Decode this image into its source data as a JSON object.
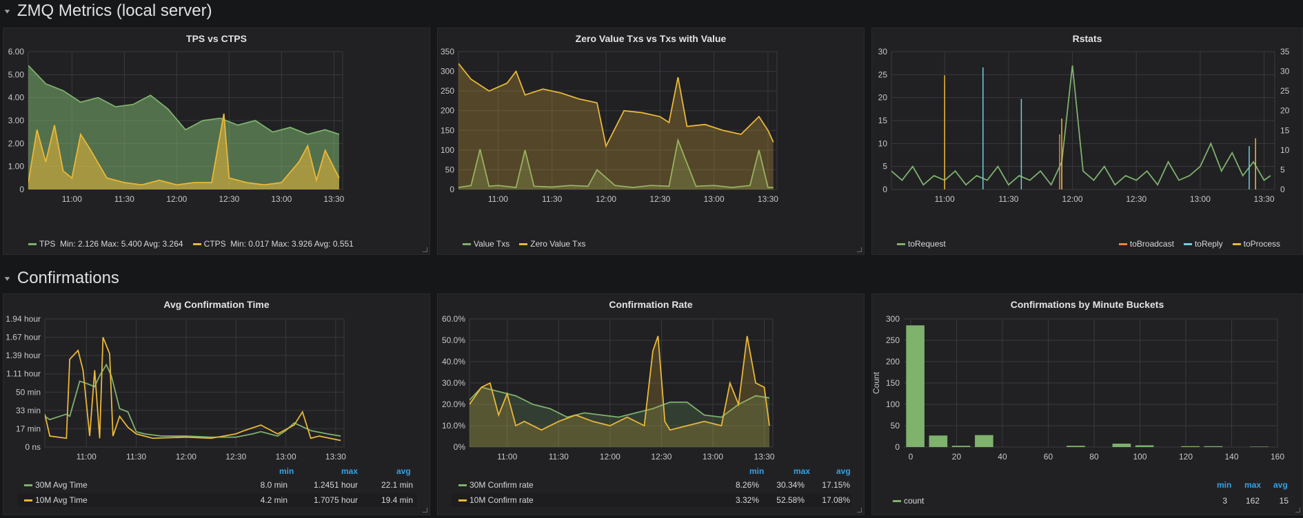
{
  "rows": [
    {
      "title": "ZMQ Metrics (local server)"
    },
    {
      "title": "Confirmations"
    }
  ],
  "colors": {
    "green": "#7eb26d",
    "yellow": "#eab839",
    "orange": "#ef843c",
    "blue": "#6ed0e0",
    "accent": "#33a2e5"
  },
  "chart_data": [
    {
      "type": "area",
      "title": "TPS vs CTPS",
      "x_ticks": [
        "11:00",
        "11:30",
        "12:00",
        "12:30",
        "13:00",
        "13:30"
      ],
      "y_ticks": [
        "0",
        "1.00",
        "2.00",
        "3.00",
        "4.00",
        "5.00",
        "6.00"
      ],
      "ylim": [
        0,
        6
      ],
      "x_range": [
        "10:35",
        "13:35"
      ],
      "series": [
        {
          "name": "TPS",
          "color": "#7eb26d",
          "stats": "Min: 2.126   Max: 5.400   Avg: 3.264",
          "x": [
            "10:35",
            "10:45",
            "10:55",
            "11:05",
            "11:15",
            "11:25",
            "11:35",
            "11:45",
            "11:55",
            "12:05",
            "12:15",
            "12:25",
            "12:35",
            "12:45",
            "12:55",
            "13:05",
            "13:15",
            "13:25",
            "13:33"
          ],
          "values": [
            5.4,
            4.6,
            4.3,
            3.8,
            4.0,
            3.6,
            3.7,
            4.1,
            3.5,
            2.6,
            3.0,
            3.1,
            2.8,
            3.0,
            2.5,
            2.7,
            2.4,
            2.6,
            2.4
          ]
        },
        {
          "name": "CTPS",
          "color": "#eab839",
          "stats": "Min: 0.017   Max: 3.926   Avg: 0.551",
          "x": [
            "10:35",
            "10:40",
            "10:45",
            "10:50",
            "10:55",
            "11:00",
            "11:05",
            "11:10",
            "11:20",
            "11:30",
            "11:40",
            "11:50",
            "12:00",
            "12:10",
            "12:20",
            "12:27",
            "12:30",
            "12:40",
            "12:50",
            "13:00",
            "13:10",
            "13:15",
            "13:20",
            "13:25",
            "13:33"
          ],
          "values": [
            0.3,
            2.6,
            1.2,
            2.8,
            0.8,
            0.5,
            2.4,
            1.8,
            0.5,
            0.3,
            0.2,
            0.4,
            0.2,
            0.3,
            0.3,
            3.3,
            0.5,
            0.3,
            0.2,
            0.3,
            1.2,
            1.9,
            0.4,
            1.7,
            0.5
          ]
        }
      ]
    },
    {
      "type": "area",
      "title": "Zero Value Txs vs Txs with Value",
      "x_ticks": [
        "11:00",
        "11:30",
        "12:00",
        "12:30",
        "13:00",
        "13:30"
      ],
      "y_ticks": [
        "0",
        "50",
        "100",
        "150",
        "200",
        "250",
        "300",
        "350"
      ],
      "ylim": [
        0,
        350
      ],
      "x_range": [
        "10:38",
        "13:35"
      ],
      "series": [
        {
          "name": "Value Txs",
          "color": "#7eb26d",
          "x": [
            "10:38",
            "10:45",
            "10:50",
            "10:55",
            "11:00",
            "11:10",
            "11:15",
            "11:20",
            "11:30",
            "11:40",
            "11:50",
            "11:55",
            "12:05",
            "12:15",
            "12:25",
            "12:35",
            "12:40",
            "12:50",
            "13:00",
            "13:10",
            "13:20",
            "13:25",
            "13:30",
            "13:33"
          ],
          "values": [
            5,
            10,
            102,
            8,
            10,
            5,
            100,
            8,
            6,
            10,
            8,
            50,
            10,
            5,
            10,
            8,
            125,
            8,
            10,
            5,
            10,
            100,
            5,
            5
          ]
        },
        {
          "name": "Zero Value Txs",
          "color": "#eab839",
          "x": [
            "10:38",
            "10:45",
            "10:55",
            "11:05",
            "11:10",
            "11:15",
            "11:25",
            "11:35",
            "11:45",
            "11:55",
            "12:00",
            "12:10",
            "12:20",
            "12:30",
            "12:35",
            "12:40",
            "12:45",
            "12:55",
            "13:05",
            "13:15",
            "13:25",
            "13:30",
            "13:33"
          ],
          "values": [
            320,
            280,
            250,
            270,
            300,
            240,
            255,
            245,
            230,
            220,
            110,
            200,
            195,
            185,
            170,
            285,
            160,
            165,
            150,
            140,
            185,
            150,
            120
          ]
        }
      ]
    },
    {
      "type": "line",
      "title": "Rstats",
      "x_ticks": [
        "11:00",
        "11:30",
        "12:00",
        "12:30",
        "13:00",
        "13:30"
      ],
      "y_ticks": [
        "0",
        "5",
        "10",
        "15",
        "20",
        "25",
        "30"
      ],
      "y2_ticks": [
        "0",
        "5",
        "10",
        "15",
        "20",
        "25",
        "30",
        "35"
      ],
      "ylim": [
        0,
        30
      ],
      "y2lim": [
        0,
        35
      ],
      "x_range": [
        "10:35",
        "13:35"
      ],
      "series": [
        {
          "name": "toRequest",
          "color": "#7eb26d",
          "axis": "left",
          "x": [
            "10:35",
            "10:40",
            "10:45",
            "10:50",
            "10:55",
            "11:00",
            "11:05",
            "11:10",
            "11:15",
            "11:20",
            "11:25",
            "11:30",
            "11:35",
            "11:40",
            "11:45",
            "11:50",
            "11:55",
            "12:00",
            "12:05",
            "12:10",
            "12:15",
            "12:20",
            "12:25",
            "12:30",
            "12:35",
            "12:40",
            "12:45",
            "12:50",
            "12:55",
            "13:00",
            "13:05",
            "13:10",
            "13:15",
            "13:20",
            "13:25",
            "13:30",
            "13:33"
          ],
          "values": [
            4,
            2,
            5,
            1,
            3,
            2,
            4,
            1,
            3,
            2,
            5,
            1,
            3,
            2,
            4,
            1,
            6,
            27,
            4,
            2,
            5,
            1,
            3,
            2,
            4,
            1,
            6,
            2,
            3,
            5,
            10,
            4,
            8,
            3,
            6,
            2,
            3
          ]
        },
        {
          "name": "toBroadcast",
          "color": "#ef843c",
          "axis": "right",
          "x": [
            "11:00",
            "11:54",
            "13:26"
          ],
          "values": [
            26,
            14,
            10
          ]
        },
        {
          "name": "toReply",
          "color": "#6ed0e0",
          "axis": "right",
          "x": [
            "11:00",
            "11:18",
            "11:36",
            "11:55",
            "13:23"
          ],
          "values": [
            27,
            31,
            23,
            8,
            11
          ]
        },
        {
          "name": "toProcess",
          "color": "#eab839",
          "axis": "right",
          "x": [
            "11:00",
            "11:55",
            "13:26"
          ],
          "values": [
            29,
            18,
            13
          ]
        }
      ]
    },
    {
      "type": "line",
      "title": "Avg Confirmation Time",
      "x_ticks": [
        "11:00",
        "11:30",
        "12:00",
        "12:30",
        "13:00",
        "13:30"
      ],
      "y_ticks": [
        "0 ns",
        "17 min",
        "33 min",
        "50 min",
        "1.11 hour",
        "1.39 hour",
        "1.67 hour",
        "1.94 hour"
      ],
      "ylim_min": [
        0,
        116.7
      ],
      "x_range": [
        "10:35",
        "13:35"
      ],
      "legend_headers": [
        "min",
        "max",
        "avg"
      ],
      "series": [
        {
          "name": "30M Avg Time",
          "color": "#7eb26d",
          "min": "8.0 min",
          "max": "1.2451 hour",
          "avg": "22.1 min",
          "x": [
            "10:35",
            "10:38",
            "10:48",
            "10:50",
            "10:56",
            "11:00",
            "11:05",
            "11:08",
            "11:12",
            "11:15",
            "11:20",
            "11:25",
            "11:30",
            "11:35",
            "11:45",
            "12:00",
            "12:15",
            "12:30",
            "12:40",
            "12:45",
            "12:55",
            "13:00",
            "13:05",
            "13:15",
            "13:25",
            "13:33"
          ],
          "values": [
            28,
            25,
            30,
            28,
            60,
            58,
            55,
            65,
            75,
            65,
            35,
            32,
            14,
            12,
            10,
            10,
            9,
            9,
            12,
            14,
            10,
            15,
            22,
            15,
            12,
            10
          ]
        },
        {
          "name": "10M Avg Time",
          "color": "#eab839",
          "min": "4.2 min",
          "max": "1.7075 hour",
          "avg": "19.4 min",
          "x": [
            "10:35",
            "10:38",
            "10:48",
            "10:50",
            "10:55",
            "10:58",
            "11:02",
            "11:05",
            "11:08",
            "11:10",
            "11:14",
            "11:16",
            "11:20",
            "11:25",
            "11:30",
            "11:40",
            "12:00",
            "12:15",
            "12:30",
            "12:35",
            "12:45",
            "12:55",
            "13:05",
            "13:10",
            "13:15",
            "13:20",
            "13:33"
          ],
          "values": [
            30,
            10,
            8,
            80,
            88,
            70,
            10,
            70,
            8,
            100,
            85,
            10,
            28,
            18,
            12,
            8,
            9,
            8,
            12,
            15,
            20,
            12,
            20,
            32,
            8,
            10,
            6
          ]
        }
      ]
    },
    {
      "type": "area",
      "title": "Confirmation Rate",
      "x_ticks": [
        "11:00",
        "11:30",
        "12:00",
        "12:30",
        "13:00",
        "13:30"
      ],
      "y_ticks": [
        "0%",
        "10.0%",
        "20.0%",
        "30.0%",
        "40.0%",
        "50.0%",
        "60.0%"
      ],
      "ylim": [
        0,
        60
      ],
      "x_range": [
        "10:38",
        "13:35"
      ],
      "legend_headers": [
        "min",
        "max",
        "avg"
      ],
      "series": [
        {
          "name": "30M Confirm rate",
          "color": "#7eb26d",
          "min": "8.26%",
          "max": "30.34%",
          "avg": "17.15%",
          "x": [
            "10:38",
            "10:45",
            "10:55",
            "11:05",
            "11:15",
            "11:25",
            "11:35",
            "11:45",
            "11:55",
            "12:05",
            "12:15",
            "12:25",
            "12:35",
            "12:45",
            "12:55",
            "13:05",
            "13:15",
            "13:25",
            "13:33"
          ],
          "values": [
            22,
            28,
            26,
            24,
            20,
            18,
            14,
            16,
            15,
            14,
            16,
            18,
            21,
            21,
            15,
            14,
            20,
            24,
            23
          ]
        },
        {
          "name": "10M Confirm rate",
          "color": "#eab839",
          "min": "3.32%",
          "max": "52.58%",
          "avg": "17.08%",
          "x": [
            "10:38",
            "10:45",
            "10:50",
            "10:55",
            "11:00",
            "11:05",
            "11:10",
            "11:20",
            "11:30",
            "11:40",
            "11:50",
            "12:00",
            "12:10",
            "12:20",
            "12:25",
            "12:28",
            "12:32",
            "12:35",
            "12:45",
            "12:55",
            "13:05",
            "13:10",
            "13:15",
            "13:20",
            "13:25",
            "13:30",
            "13:33"
          ],
          "values": [
            20,
            28,
            30,
            15,
            25,
            10,
            12,
            8,
            12,
            15,
            12,
            10,
            14,
            10,
            45,
            52,
            12,
            8,
            10,
            12,
            10,
            30,
            20,
            52,
            30,
            28,
            10
          ]
        }
      ]
    },
    {
      "type": "bar",
      "title": "Confirmations by Minute Buckets",
      "ylabel": "Count",
      "x_ticks": [
        "0",
        "20",
        "40",
        "60",
        "80",
        "100",
        "120",
        "140",
        "160"
      ],
      "y_ticks": [
        "0",
        "50",
        "100",
        "150",
        "200",
        "250",
        "300"
      ],
      "xlim": [
        -3,
        160
      ],
      "ylim": [
        0,
        300
      ],
      "legend_headers": [
        "min",
        "max",
        "avg"
      ],
      "series": [
        {
          "name": "count",
          "color": "#7eb26d",
          "min": "3",
          "max": "162",
          "avg": "15",
          "x": [
            2,
            12,
            22,
            32,
            72,
            92,
            102,
            122,
            132,
            152
          ],
          "values": [
            285,
            27,
            3,
            28,
            3,
            8,
            4,
            2,
            2,
            1
          ]
        }
      ]
    }
  ]
}
